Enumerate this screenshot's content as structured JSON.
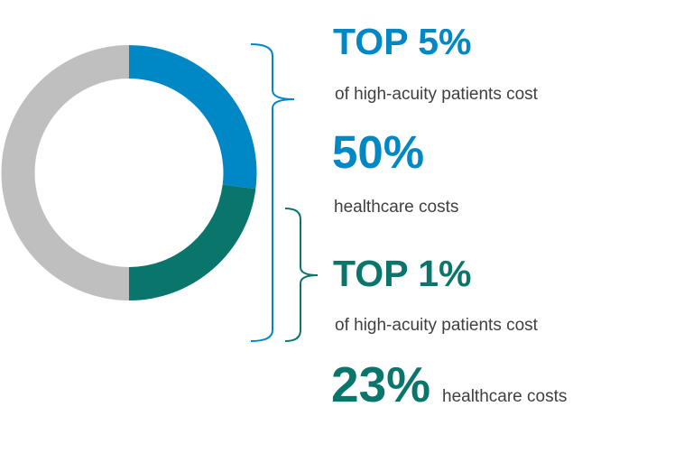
{
  "colors": {
    "blue": "#0088C6",
    "green": "#0A766B",
    "grey": "#BFBFBF",
    "text": "#404040"
  },
  "chart_data": {
    "type": "pie",
    "variant": "donut",
    "start": "12 o'clock, clockwise",
    "slices": [
      {
        "value": 27,
        "color": "#0088C6"
      },
      {
        "value": 23,
        "color": "#0A766B"
      },
      {
        "value": 50,
        "color": "#BFBFBF"
      }
    ]
  },
  "callouts": {
    "top5": {
      "headline": "TOP 5%",
      "line": "of high-acuity  patients cost",
      "value": "50%",
      "value_label": "healthcare costs"
    },
    "top1": {
      "headline": "TOP 1%",
      "line": "of high-acuity  patients cost",
      "value": "23%",
      "value_label": "healthcare costs"
    }
  }
}
